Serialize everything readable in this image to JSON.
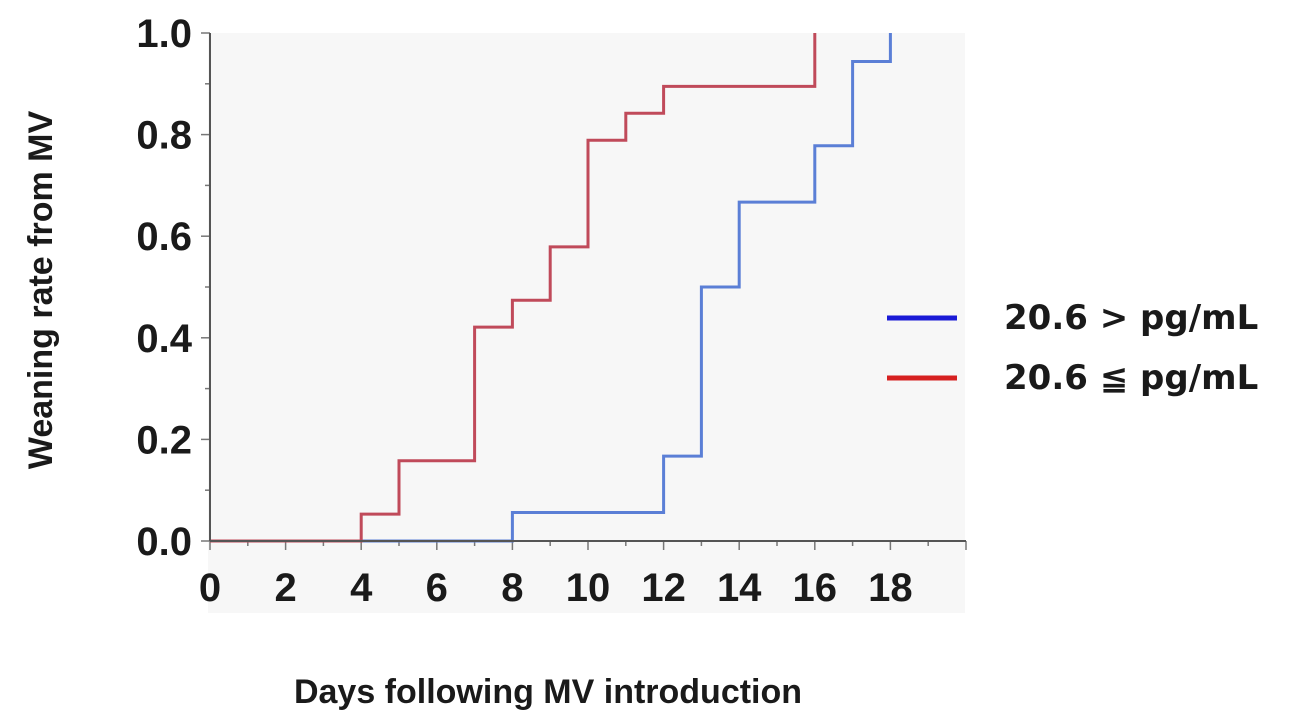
{
  "chart_data": {
    "type": "line",
    "step": true,
    "xlabel": "Days following MV introduction",
    "ylabel": "Weaning rate from MV",
    "xlim": [
      0,
      20
    ],
    "ylim": [
      0,
      1.0
    ],
    "xticks": [
      "0",
      "2",
      "4",
      "6",
      "8",
      "10",
      "12",
      "14",
      "16",
      "18"
    ],
    "yticks": [
      "0.0",
      "0.2",
      "0.4",
      "0.6",
      "0.8",
      "1.0"
    ],
    "grid": false,
    "legend_position": "right",
    "series": [
      {
        "name": "20.6 > pg/mL",
        "line_color": "#5b7fd6",
        "legend_color": "#1a1ad6",
        "x": [
          0,
          8,
          12,
          13,
          14,
          16,
          17,
          18
        ],
        "y": [
          0.0,
          0.056,
          0.167,
          0.5,
          0.667,
          0.778,
          0.944,
          1.0
        ]
      },
      {
        "name": "20.6 ≦ pg/mL",
        "line_color": "#c04a5a",
        "legend_color": "#d62020",
        "x": [
          0,
          4,
          5,
          7,
          8,
          9,
          10,
          11,
          12,
          16
        ],
        "y": [
          0.0,
          0.053,
          0.158,
          0.421,
          0.474,
          0.579,
          0.789,
          0.842,
          0.895,
          1.0
        ]
      }
    ]
  }
}
